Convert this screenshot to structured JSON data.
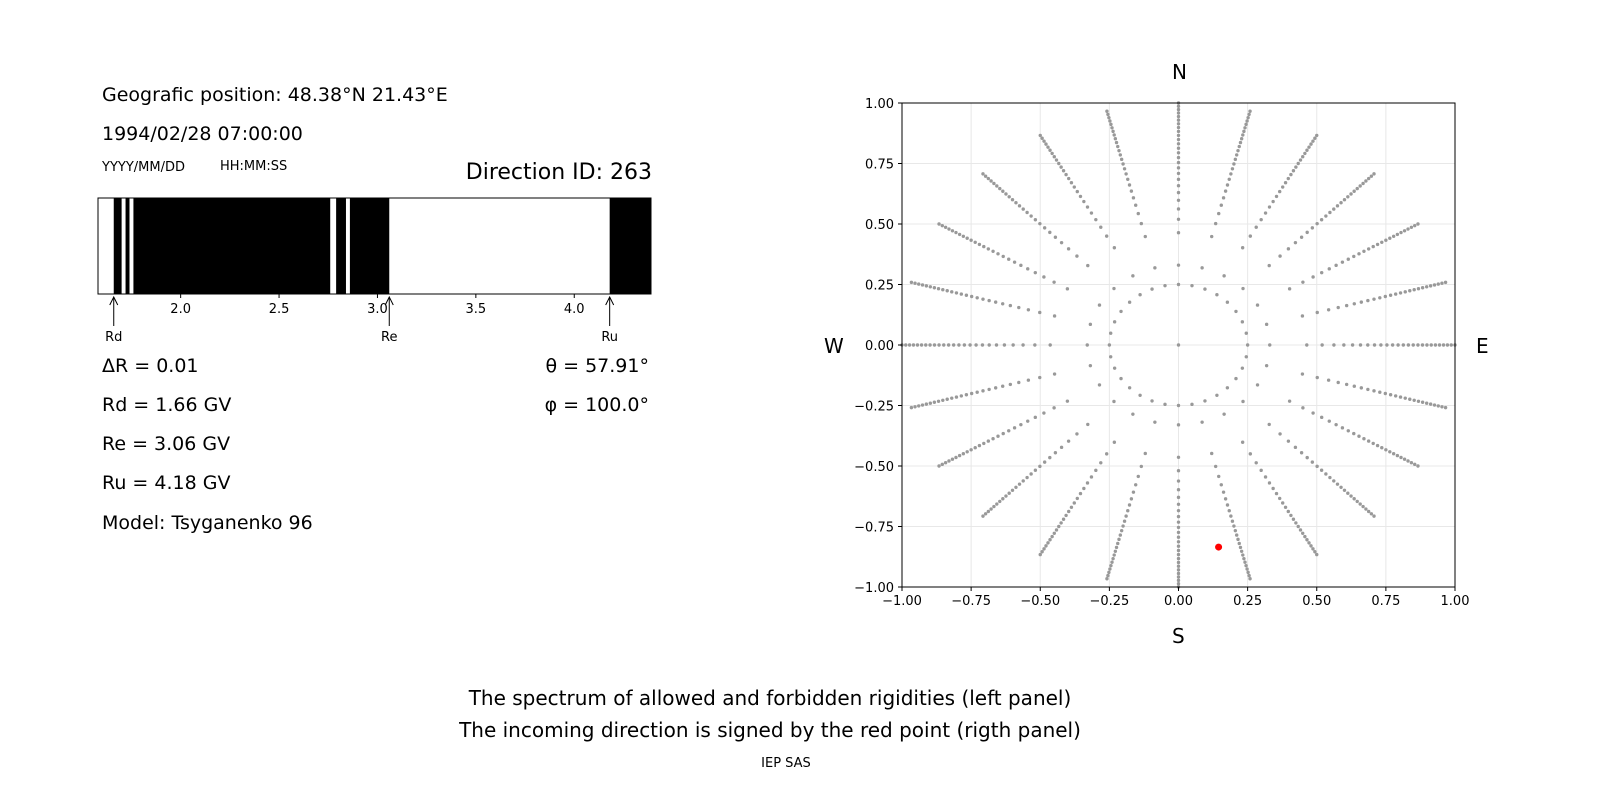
{
  "left_panel": {
    "geo_position": "Geografic position: 48.38°N 21.43°E",
    "datetime": "1994/02/28 07:00:00",
    "date_format": "YYYY/MM/DD",
    "time_format": "HH:MM:SS",
    "direction_id": "Direction ID: 263",
    "delta_r": "ΔR = 0.01",
    "rd": "Rd = 1.66 GV",
    "re": "Re = 3.06 GV",
    "ru": "Ru = 4.18 GV",
    "model": "Model: Tsyganenko 96",
    "theta": "θ = 57.91°",
    "phi": "φ = 100.0°"
  },
  "right_panel": {
    "north": "N",
    "south": "S",
    "west": "W",
    "east": "E"
  },
  "caption": {
    "line1": "The spectrum of allowed and forbidden rigidities (left panel)",
    "line2": "The incoming direction is signed by the red point (rigth panel)",
    "credit": "IEP SAS"
  },
  "chart_data": [
    {
      "type": "bar",
      "name": "rigidity-spectrum",
      "xlim": [
        1.58,
        4.39
      ],
      "xticks": [
        2.0,
        2.5,
        3.0,
        3.5,
        4.0
      ],
      "xtick_labels": [
        "2.0",
        "2.5",
        "3.0",
        "3.5",
        "4.0"
      ],
      "forbidden_intervals": [
        [
          1.66,
          1.7
        ],
        [
          1.72,
          1.74
        ],
        [
          1.76,
          2.76
        ],
        [
          2.79,
          2.84
        ],
        [
          2.86,
          3.06
        ],
        [
          4.18,
          4.39
        ]
      ],
      "markers": [
        {
          "label": "Rd",
          "value": 1.66
        },
        {
          "label": "Re",
          "value": 3.06
        },
        {
          "label": "Ru",
          "value": 4.18
        }
      ],
      "colors": {
        "forbidden": "#000000",
        "allowed": "#ffffff"
      }
    },
    {
      "type": "scatter",
      "name": "incoming-directions",
      "xlim": [
        -1,
        1
      ],
      "ylim": [
        -1,
        1
      ],
      "xticks": [
        -1.0,
        -0.75,
        -0.5,
        -0.25,
        0.0,
        0.25,
        0.5,
        0.75,
        1.0
      ],
      "xtick_labels": [
        "−1.00",
        "−0.75",
        "−0.50",
        "−0.25",
        "0.00",
        "0.25",
        "0.50",
        "0.75",
        "1.00"
      ],
      "yticks": [
        1.0,
        0.75,
        0.5,
        0.25,
        0.0,
        -0.25,
        -0.5,
        -0.75,
        -1.0
      ],
      "ytick_labels": [
        "1.00",
        "0.75",
        "0.50",
        "0.25",
        "0.00",
        "−0.25",
        "−0.50",
        "−0.75",
        "−1.00"
      ],
      "grid": true,
      "grid_points": {
        "description": "polar grid of zenith/azimuth directions",
        "center": [
          0,
          0
        ],
        "inner_ring_radius": 0.25,
        "ring_points": 32,
        "rays": 24,
        "ray_start": 0.33,
        "ray_end": 1.0,
        "color": "#999999"
      },
      "highlight_point": {
        "x": 0.145,
        "y": -0.835,
        "color": "#ff0000"
      }
    }
  ]
}
